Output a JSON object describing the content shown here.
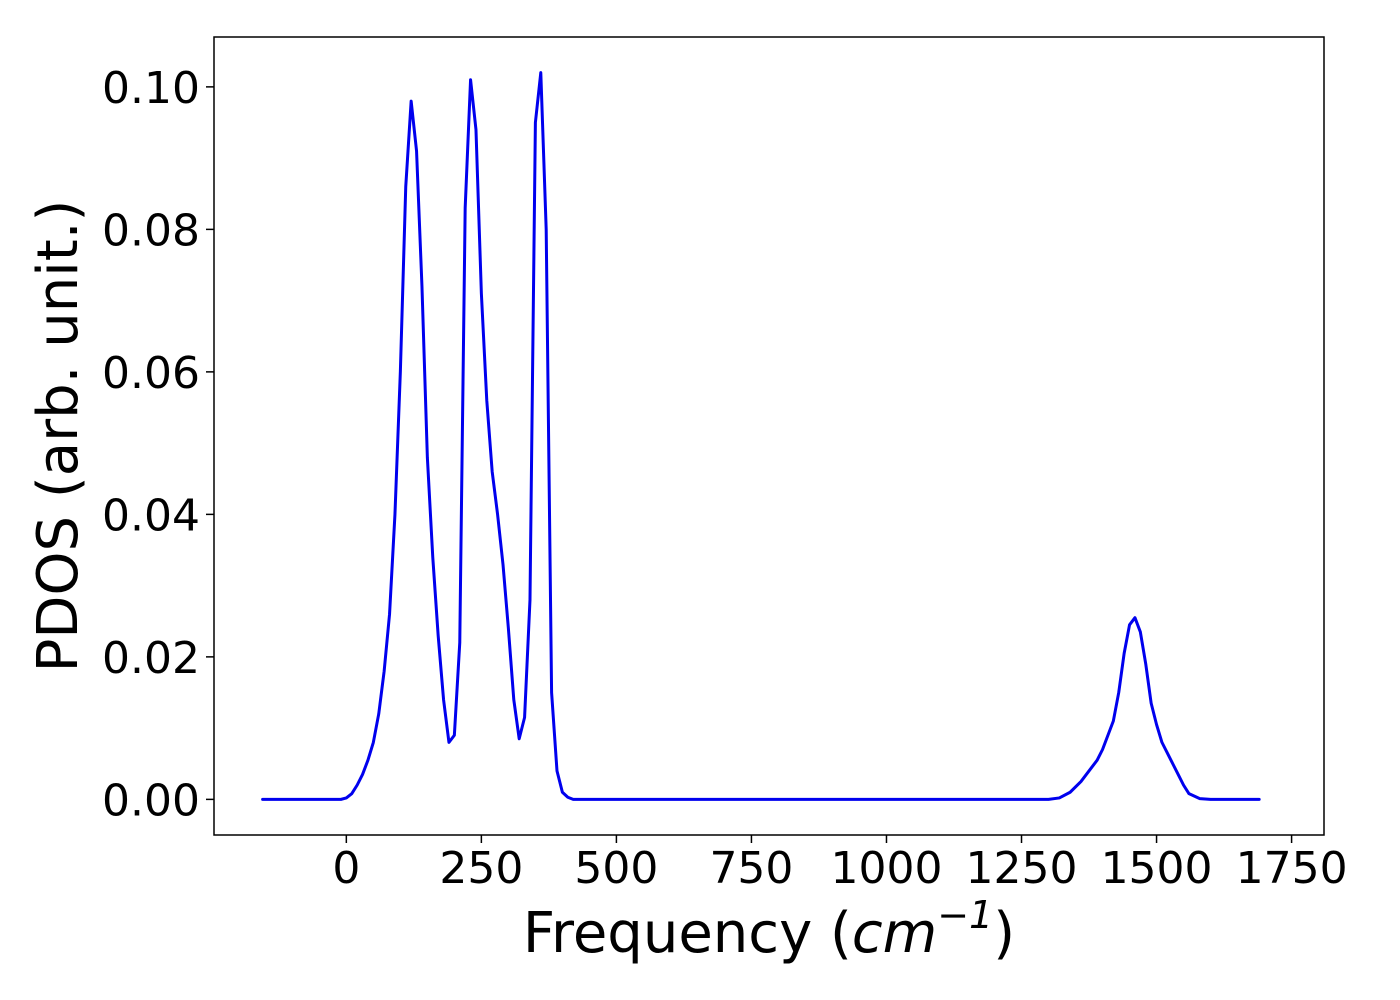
{
  "chart_data": {
    "type": "line",
    "xlabel_prefix": "Frequency (",
    "xlabel_unit_base": "cm",
    "xlabel_unit_exp": "−1",
    "xlabel_suffix": ")",
    "ylabel": "PDOS (arb. unit.)",
    "xlim": [
      -245,
      1810
    ],
    "ylim": [
      -0.005,
      0.107
    ],
    "xticks": [
      0,
      250,
      500,
      750,
      1000,
      1250,
      1500,
      1750
    ],
    "yticks": [
      0.0,
      0.02,
      0.04,
      0.06,
      0.08,
      0.1
    ],
    "xtick_labels": [
      "0",
      "250",
      "500",
      "750",
      "1000",
      "1250",
      "1500",
      "1750"
    ],
    "ytick_labels": [
      "0.00",
      "0.02",
      "0.04",
      "0.06",
      "0.08",
      "0.10"
    ],
    "grid": false,
    "series": [
      {
        "color": "#0000ee",
        "x": [
          -155,
          -50,
          -10,
          0,
          10,
          20,
          30,
          40,
          50,
          60,
          70,
          80,
          90,
          100,
          110,
          120,
          130,
          140,
          150,
          160,
          170,
          180,
          190,
          200,
          210,
          220,
          230,
          240,
          250,
          260,
          270,
          280,
          290,
          300,
          310,
          320,
          330,
          340,
          350,
          360,
          370,
          380,
          390,
          400,
          410,
          420,
          500,
          1000,
          1300,
          1320,
          1340,
          1360,
          1380,
          1390,
          1400,
          1410,
          1420,
          1430,
          1440,
          1450,
          1460,
          1470,
          1480,
          1490,
          1500,
          1510,
          1520,
          1530,
          1540,
          1550,
          1560,
          1580,
          1600,
          1690
        ],
        "y": [
          0.0,
          0.0,
          0.0,
          0.0002,
          0.0008,
          0.002,
          0.0035,
          0.0055,
          0.008,
          0.012,
          0.018,
          0.026,
          0.04,
          0.06,
          0.086,
          0.098,
          0.091,
          0.072,
          0.048,
          0.034,
          0.023,
          0.014,
          0.008,
          0.009,
          0.022,
          0.083,
          0.101,
          0.094,
          0.071,
          0.056,
          0.046,
          0.04,
          0.033,
          0.024,
          0.014,
          0.0085,
          0.0115,
          0.028,
          0.095,
          0.102,
          0.08,
          0.015,
          0.004,
          0.001,
          0.0003,
          0.0,
          0.0,
          0.0,
          0.0,
          0.0002,
          0.001,
          0.0025,
          0.0045,
          0.0055,
          0.007,
          0.009,
          0.011,
          0.015,
          0.0205,
          0.0245,
          0.0255,
          0.0235,
          0.019,
          0.0135,
          0.0105,
          0.008,
          0.0065,
          0.005,
          0.0035,
          0.002,
          0.0008,
          0.0001,
          0.0,
          0.0
        ]
      }
    ]
  }
}
